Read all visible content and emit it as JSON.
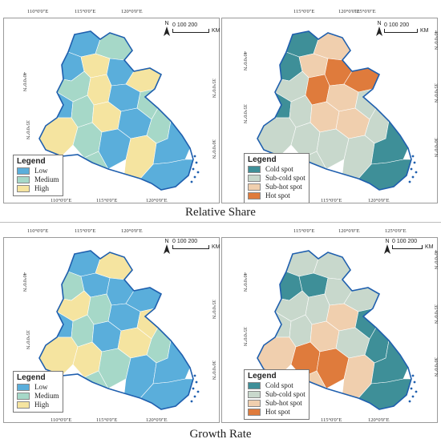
{
  "colors": {
    "low": "#5aaedb",
    "medium": "#a6d8c8",
    "high": "#f5e4a0",
    "cold": "#3e8f98",
    "subcold": "#c8d8cc",
    "subhot": "#f0cfae",
    "hot": "#df7b3c",
    "boundary": "#1f5fae"
  },
  "coords": {
    "lon_top": [
      "110°0'0\"E",
      "115°0'0\"E",
      "120°0'0\"E",
      "125°0'0\"E"
    ],
    "lon_bottom": [
      "110°0'0\"E",
      "115°0'0\"E",
      "120°0'0\"E"
    ],
    "lat_left": [
      "40°0'0\"N",
      "35°0'0\"N"
    ],
    "lat_right": [
      "40°0'0\"N",
      "35°0'0\"N",
      "30°0'0\"N"
    ]
  },
  "scale": {
    "north": "N",
    "ticks": "0   100  200",
    "unit": "KM"
  },
  "legend_level": {
    "title": "Legend",
    "items": [
      "Low",
      "Medium",
      "High"
    ]
  },
  "legend_spot": {
    "title": "Legend",
    "items": [
      "Cold spot",
      "Sub-cold spot",
      "Sub-hot spot",
      "Hot spot"
    ]
  },
  "captions": {
    "relative_share": "Relative Share",
    "growth_rate": "Growth Rate"
  }
}
